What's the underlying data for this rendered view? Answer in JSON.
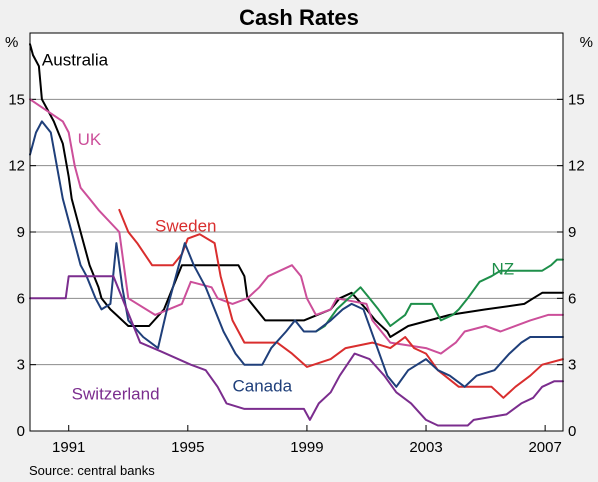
{
  "chart_data": {
    "type": "line",
    "title": "Cash Rates",
    "unit_left": "%",
    "unit_right": "%",
    "source": "Source: central banks",
    "xlim": [
      1989.7,
      2007.6
    ],
    "ylim": [
      0,
      18
    ],
    "x_ticks": [
      1991,
      1995,
      1999,
      2003,
      2007
    ],
    "x_tick_labels": [
      "1991",
      "1995",
      "1999",
      "2003",
      "2007"
    ],
    "y_ticks": [
      0,
      3,
      6,
      9,
      12,
      15
    ],
    "y_tick_labels": [
      "0",
      "3",
      "6",
      "9",
      "12",
      "15"
    ],
    "grid": true,
    "colors": {
      "Australia": "#000000",
      "UK": "#cc4f9a",
      "Sweden": "#d92e2e",
      "NZ": "#1e8f4a",
      "Canada": "#1f3f7a",
      "Switzerland": "#7b2d8e"
    },
    "series": [
      {
        "name": "Australia",
        "points": [
          [
            1989.7,
            17.5
          ],
          [
            1989.8,
            17.0
          ],
          [
            1990.0,
            16.5
          ],
          [
            1990.1,
            15.0
          ],
          [
            1990.3,
            14.5
          ],
          [
            1990.5,
            14.0
          ],
          [
            1990.8,
            13.0
          ],
          [
            1991.0,
            11.5
          ],
          [
            1991.1,
            10.5
          ],
          [
            1991.3,
            9.5
          ],
          [
            1991.5,
            8.5
          ],
          [
            1991.7,
            7.5
          ],
          [
            1992.0,
            6.5
          ],
          [
            1992.1,
            6.0
          ],
          [
            1992.4,
            5.5
          ],
          [
            1992.6,
            5.25
          ],
          [
            1993.0,
            4.75
          ],
          [
            1993.7,
            4.75
          ],
          [
            1994.2,
            5.5
          ],
          [
            1994.5,
            6.5
          ],
          [
            1994.8,
            7.5
          ],
          [
            1996.7,
            7.5
          ],
          [
            1996.9,
            7.0
          ],
          [
            1997.0,
            6.0
          ],
          [
            1997.3,
            5.5
          ],
          [
            1997.6,
            5.0
          ],
          [
            1998.9,
            5.0
          ],
          [
            1999.8,
            5.5
          ],
          [
            2000.1,
            6.0
          ],
          [
            2000.5,
            6.25
          ],
          [
            2001.0,
            5.5
          ],
          [
            2001.3,
            5.0
          ],
          [
            2001.7,
            4.5
          ],
          [
            2001.8,
            4.25
          ],
          [
            2002.4,
            4.75
          ],
          [
            2003.8,
            5.25
          ],
          [
            2005.0,
            5.5
          ],
          [
            2006.3,
            5.75
          ],
          [
            2006.6,
            6.0
          ],
          [
            2006.9,
            6.25
          ],
          [
            2007.6,
            6.25
          ]
        ]
      },
      {
        "name": "UK",
        "points": [
          [
            1989.7,
            15.0
          ],
          [
            1990.8,
            14.0
          ],
          [
            1991.0,
            13.5
          ],
          [
            1991.2,
            12.0
          ],
          [
            1991.4,
            11.0
          ],
          [
            1991.7,
            10.5
          ],
          [
            1992.0,
            10.0
          ],
          [
            1992.7,
            9.0
          ],
          [
            1992.9,
            7.0
          ],
          [
            1993.0,
            6.0
          ],
          [
            1993.9,
            5.25
          ],
          [
            1994.8,
            5.75
          ],
          [
            1995.1,
            6.75
          ],
          [
            1995.8,
            6.5
          ],
          [
            1996.0,
            6.0
          ],
          [
            1996.5,
            5.75
          ],
          [
            1997.0,
            6.0
          ],
          [
            1997.4,
            6.5
          ],
          [
            1997.7,
            7.0
          ],
          [
            1998.5,
            7.5
          ],
          [
            1998.8,
            7.0
          ],
          [
            1999.0,
            6.0
          ],
          [
            1999.3,
            5.25
          ],
          [
            1999.8,
            5.5
          ],
          [
            2000.0,
            6.0
          ],
          [
            2001.0,
            5.75
          ],
          [
            2001.2,
            5.0
          ],
          [
            2001.8,
            4.0
          ],
          [
            2003.0,
            3.75
          ],
          [
            2003.5,
            3.5
          ],
          [
            2004.0,
            4.0
          ],
          [
            2004.3,
            4.5
          ],
          [
            2005.0,
            4.75
          ],
          [
            2005.5,
            4.5
          ],
          [
            2006.5,
            5.0
          ],
          [
            2007.1,
            5.25
          ],
          [
            2007.6,
            5.25
          ]
        ]
      },
      {
        "name": "Sweden",
        "points": [
          [
            1992.7,
            10.0
          ],
          [
            1993.0,
            9.0
          ],
          [
            1993.3,
            8.5
          ],
          [
            1993.8,
            7.5
          ],
          [
            1994.5,
            7.5
          ],
          [
            1994.8,
            8.0
          ],
          [
            1995.0,
            8.7
          ],
          [
            1995.4,
            8.9
          ],
          [
            1995.9,
            8.5
          ],
          [
            1996.1,
            7.0
          ],
          [
            1996.5,
            5.0
          ],
          [
            1996.9,
            4.0
          ],
          [
            1998.0,
            4.0
          ],
          [
            1998.5,
            3.5
          ],
          [
            1999.0,
            2.9
          ],
          [
            1999.8,
            3.25
          ],
          [
            2000.3,
            3.75
          ],
          [
            2001.2,
            4.0
          ],
          [
            2001.8,
            3.75
          ],
          [
            2002.3,
            4.25
          ],
          [
            2002.6,
            3.75
          ],
          [
            2003.0,
            3.5
          ],
          [
            2003.4,
            2.75
          ],
          [
            2004.1,
            2.0
          ],
          [
            2005.2,
            2.0
          ],
          [
            2005.6,
            1.5
          ],
          [
            2006.0,
            2.0
          ],
          [
            2006.5,
            2.5
          ],
          [
            2006.9,
            3.0
          ],
          [
            2007.6,
            3.25
          ]
        ]
      },
      {
        "name": "NZ",
        "points": [
          [
            1999.3,
            4.5
          ],
          [
            1999.6,
            4.75
          ],
          [
            2000.0,
            5.5
          ],
          [
            2000.4,
            6.0
          ],
          [
            2000.8,
            6.5
          ],
          [
            2001.1,
            6.0
          ],
          [
            2001.4,
            5.5
          ],
          [
            2001.8,
            4.75
          ],
          [
            2002.3,
            5.25
          ],
          [
            2002.5,
            5.75
          ],
          [
            2003.2,
            5.75
          ],
          [
            2003.5,
            5.0
          ],
          [
            2003.9,
            5.25
          ],
          [
            2004.1,
            5.5
          ],
          [
            2004.4,
            6.0
          ],
          [
            2004.8,
            6.75
          ],
          [
            2005.2,
            7.0
          ],
          [
            2005.5,
            7.25
          ],
          [
            2006.9,
            7.25
          ],
          [
            2007.2,
            7.5
          ],
          [
            2007.4,
            7.75
          ],
          [
            2007.6,
            7.75
          ]
        ]
      },
      {
        "name": "Canada",
        "points": [
          [
            1989.7,
            12.5
          ],
          [
            1989.9,
            13.5
          ],
          [
            1990.1,
            14.0
          ],
          [
            1990.4,
            13.5
          ],
          [
            1990.6,
            12.0
          ],
          [
            1990.8,
            10.5
          ],
          [
            1991.0,
            9.5
          ],
          [
            1991.2,
            8.5
          ],
          [
            1991.4,
            7.5
          ],
          [
            1991.6,
            7.0
          ],
          [
            1991.9,
            6.0
          ],
          [
            1992.1,
            5.5
          ],
          [
            1992.4,
            5.75
          ],
          [
            1992.6,
            8.5
          ],
          [
            1992.8,
            6.5
          ],
          [
            1993.0,
            5.0
          ],
          [
            1993.5,
            4.25
          ],
          [
            1994.0,
            3.75
          ],
          [
            1994.3,
            5.5
          ],
          [
            1994.6,
            7.0
          ],
          [
            1994.9,
            8.5
          ],
          [
            1995.2,
            7.5
          ],
          [
            1995.6,
            6.5
          ],
          [
            1995.9,
            5.5
          ],
          [
            1996.2,
            4.5
          ],
          [
            1996.6,
            3.5
          ],
          [
            1996.9,
            3.0
          ],
          [
            1997.5,
            3.0
          ],
          [
            1997.8,
            3.75
          ],
          [
            1998.3,
            4.5
          ],
          [
            1998.6,
            5.0
          ],
          [
            1998.9,
            4.5
          ],
          [
            1999.3,
            4.5
          ],
          [
            1999.8,
            5.0
          ],
          [
            2000.2,
            5.5
          ],
          [
            2000.5,
            5.75
          ],
          [
            2000.9,
            5.5
          ],
          [
            2001.3,
            4.0
          ],
          [
            2001.7,
            2.5
          ],
          [
            2002.0,
            2.0
          ],
          [
            2002.4,
            2.75
          ],
          [
            2003.0,
            3.25
          ],
          [
            2003.4,
            2.75
          ],
          [
            2003.8,
            2.5
          ],
          [
            2004.3,
            2.0
          ],
          [
            2004.7,
            2.5
          ],
          [
            2005.3,
            2.75
          ],
          [
            2005.8,
            3.5
          ],
          [
            2006.2,
            4.0
          ],
          [
            2006.5,
            4.25
          ],
          [
            2007.6,
            4.25
          ]
        ]
      },
      {
        "name": "Switzerland",
        "points": [
          [
            1989.7,
            6.0
          ],
          [
            1990.9,
            6.0
          ],
          [
            1991.0,
            7.0
          ],
          [
            1992.5,
            7.0
          ],
          [
            1993.1,
            5.0
          ],
          [
            1993.4,
            4.0
          ],
          [
            1994.1,
            3.6
          ],
          [
            1995.1,
            3.0
          ],
          [
            1995.6,
            2.75
          ],
          [
            1996.0,
            2.0
          ],
          [
            1996.3,
            1.25
          ],
          [
            1996.9,
            1.0
          ],
          [
            1998.9,
            1.0
          ],
          [
            1999.1,
            0.5
          ],
          [
            1999.4,
            1.25
          ],
          [
            1999.8,
            1.75
          ],
          [
            2000.1,
            2.5
          ],
          [
            2000.6,
            3.5
          ],
          [
            2001.1,
            3.25
          ],
          [
            2001.6,
            2.5
          ],
          [
            2002.0,
            1.75
          ],
          [
            2002.5,
            1.25
          ],
          [
            2003.0,
            0.5
          ],
          [
            2003.4,
            0.25
          ],
          [
            2004.4,
            0.25
          ],
          [
            2004.6,
            0.5
          ],
          [
            2005.7,
            0.75
          ],
          [
            2006.2,
            1.25
          ],
          [
            2006.6,
            1.5
          ],
          [
            2006.9,
            2.0
          ],
          [
            2007.3,
            2.25
          ],
          [
            2007.6,
            2.25
          ]
        ]
      }
    ],
    "legend": [
      {
        "name": "Australia",
        "text": "Australia",
        "x": 1990.1,
        "y": 16.8
      },
      {
        "name": "UK",
        "text": "UK",
        "x": 1991.3,
        "y": 13.2
      },
      {
        "name": "Sweden",
        "text": "Sweden",
        "x": 1993.9,
        "y": 9.3
      },
      {
        "name": "NZ",
        "text": "NZ",
        "x": 2005.2,
        "y": 7.35
      },
      {
        "name": "Canada",
        "text": "Canada",
        "x": 1996.5,
        "y": 2.05
      },
      {
        "name": "Switzerland",
        "text": "Switzerland",
        "x": 1991.1,
        "y": 1.7
      }
    ]
  }
}
